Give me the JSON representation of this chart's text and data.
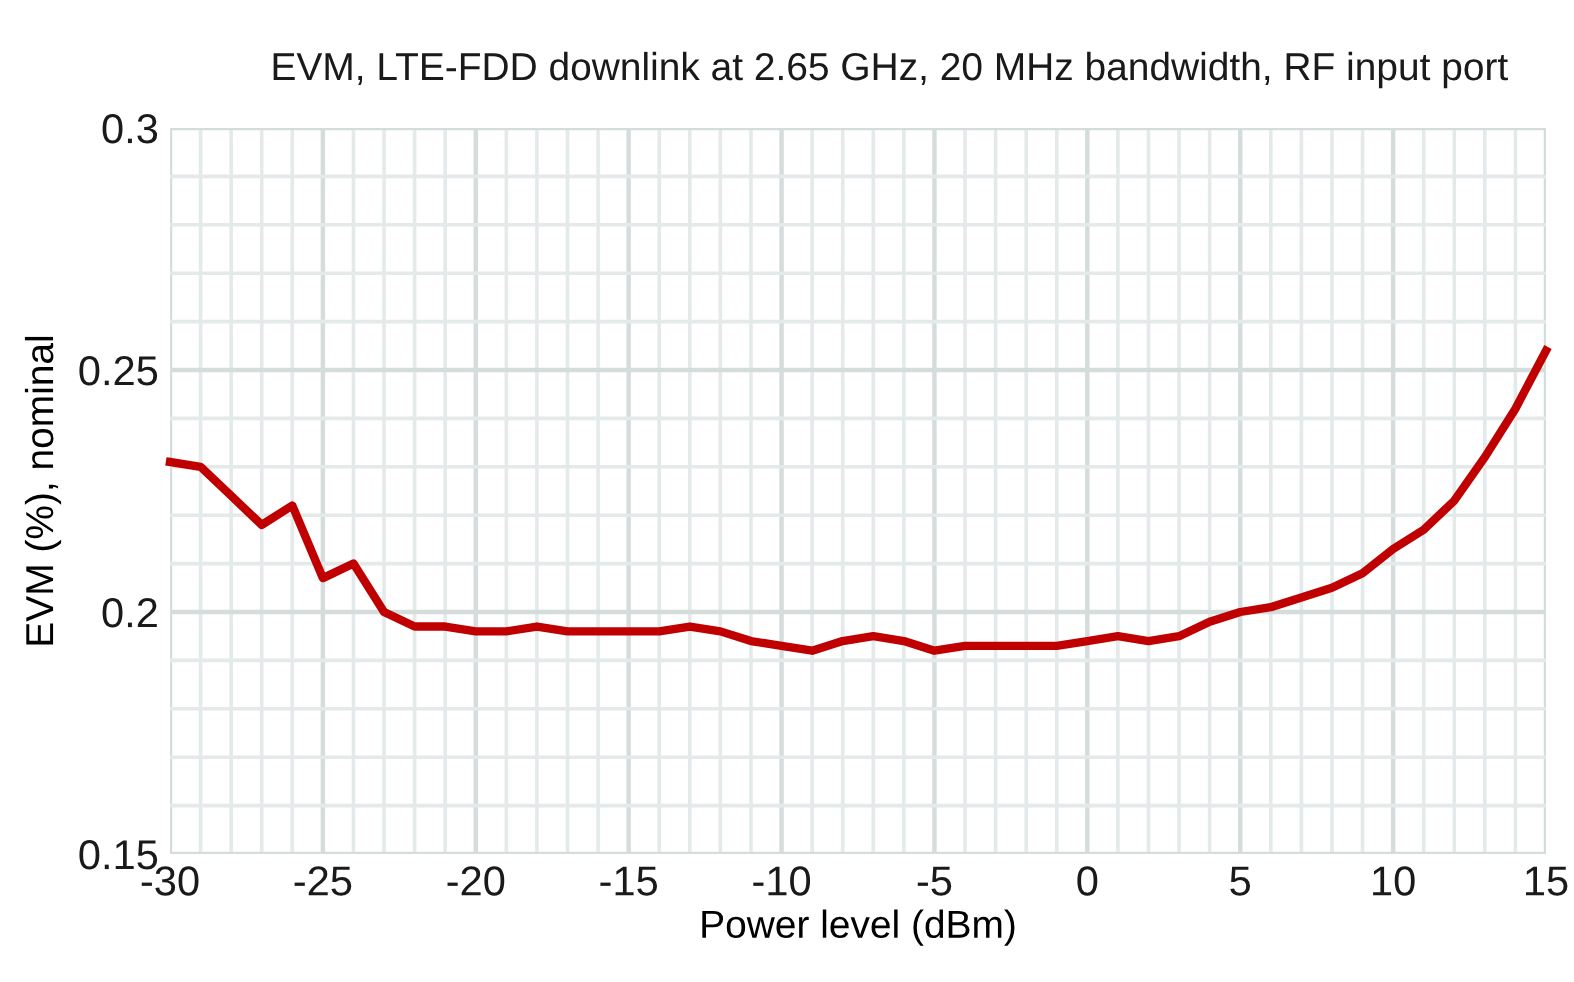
{
  "chart_data": {
    "type": "line",
    "title": "EVM, LTE-FDD downlink at 2.65 GHz, 20 MHz bandwidth, RF input port",
    "xlabel": "Power level (dBm)",
    "ylabel": "EVM (%), nominal",
    "x": [
      -30,
      -29,
      -28,
      -27,
      -26,
      -25,
      -24,
      -23,
      -22,
      -21,
      -20,
      -19,
      -18,
      -17,
      -16,
      -15,
      -14,
      -13,
      -12,
      -11,
      -10,
      -9,
      -8,
      -7,
      -6,
      -5,
      -4,
      -3,
      -2,
      -1,
      0,
      1,
      2,
      3,
      4,
      5,
      6,
      7,
      8,
      9,
      10,
      11,
      12,
      13,
      14,
      15
    ],
    "series": [
      {
        "color": "#c00000",
        "values": [
          0.231,
          0.23,
          0.224,
          0.218,
          0.222,
          0.207,
          0.21,
          0.2,
          0.197,
          0.197,
          0.196,
          0.196,
          0.197,
          0.196,
          0.196,
          0.196,
          0.196,
          0.197,
          0.196,
          0.194,
          0.193,
          0.192,
          0.194,
          0.195,
          0.194,
          0.192,
          0.193,
          0.193,
          0.193,
          0.193,
          0.194,
          0.195,
          0.194,
          0.195,
          0.198,
          0.2,
          0.201,
          0.203,
          0.205,
          0.208,
          0.213,
          0.217,
          0.223,
          0.232,
          0.242,
          0.254
        ]
      }
    ],
    "xlim": [
      -30,
      15
    ],
    "xticks": [
      -30,
      -25,
      -20,
      -15,
      -10,
      -5,
      0,
      5,
      10,
      15
    ],
    "ylim": [
      0.15,
      0.3
    ],
    "yticks": [
      0.15,
      {
        "value": 0.2,
        "label": "0.2"
      },
      0.25,
      {
        "value": 0.3,
        "label": "0.3"
      }
    ],
    "grid": true,
    "line_style": "solid",
    "marker": "none"
  }
}
